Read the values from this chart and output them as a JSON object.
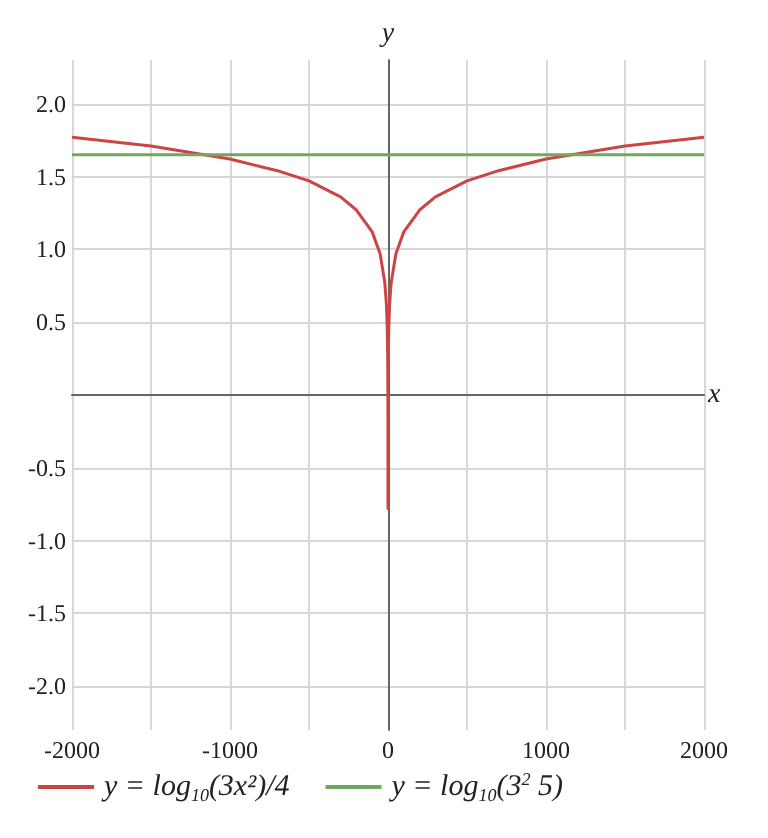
{
  "chart_data": {
    "type": "line",
    "xlabel": "x",
    "ylabel": "y",
    "xlim": [
      -2000,
      2000
    ],
    "ylim": [
      -2.3,
      2.3
    ],
    "xticks": [
      -2000,
      {
        "value": -1500,
        "label": null
      },
      -1000,
      {
        "value": -500,
        "label": null
      },
      0,
      {
        "value": 500,
        "label": null
      },
      1000,
      {
        "value": 1500,
        "label": null
      },
      2000
    ],
    "yticks": [
      {
        "value": -2,
        "label": "-2.0"
      },
      {
        "value": -1.5,
        "label": "-1.5"
      },
      {
        "value": -1,
        "label": "-1.0"
      },
      {
        "value": -0.5,
        "label": "-0.5"
      },
      {
        "value": 0.5,
        "label": "0.5"
      },
      {
        "value": 1,
        "label": "1.0"
      },
      {
        "value": 1.5,
        "label": "1.5"
      },
      {
        "value": 2,
        "label": "2.0"
      }
    ],
    "grid": true,
    "legend": "bottom left",
    "marker": "none",
    "line_style": "solid",
    "series": [
      {
        "name": "y = log$_{10}$(3x²)/4",
        "color": "#cc4444",
        "x": [
          -2000,
          -1500,
          -1000,
          -700,
          -500,
          -300,
          -200,
          -100,
          -50,
          -20,
          -10,
          -5,
          -2,
          -1,
          -0.5,
          -0.1,
          -0.016,
          0.016,
          0.1,
          0.5,
          1,
          2,
          5,
          10,
          20,
          50,
          100,
          200,
          300,
          500,
          700,
          1000,
          1500,
          2000
        ],
        "values": [
          1.77,
          1.71,
          1.62,
          1.54,
          1.47,
          1.36,
          1.27,
          1.12,
          0.97,
          0.77,
          0.62,
          0.47,
          0.27,
          0.12,
          -0.03,
          -0.38,
          -0.78,
          -0.78,
          -0.38,
          -0.03,
          0.12,
          0.27,
          0.47,
          0.62,
          0.77,
          0.97,
          1.12,
          1.27,
          1.36,
          1.47,
          1.54,
          1.62,
          1.71,
          1.77
        ]
      },
      {
        "name": "y = log$_{10}$(3$^{2}$ 5)",
        "color": "#70a860",
        "x": [
          -2000,
          2000
        ],
        "values": [
          1.65,
          1.65
        ]
      }
    ]
  }
}
